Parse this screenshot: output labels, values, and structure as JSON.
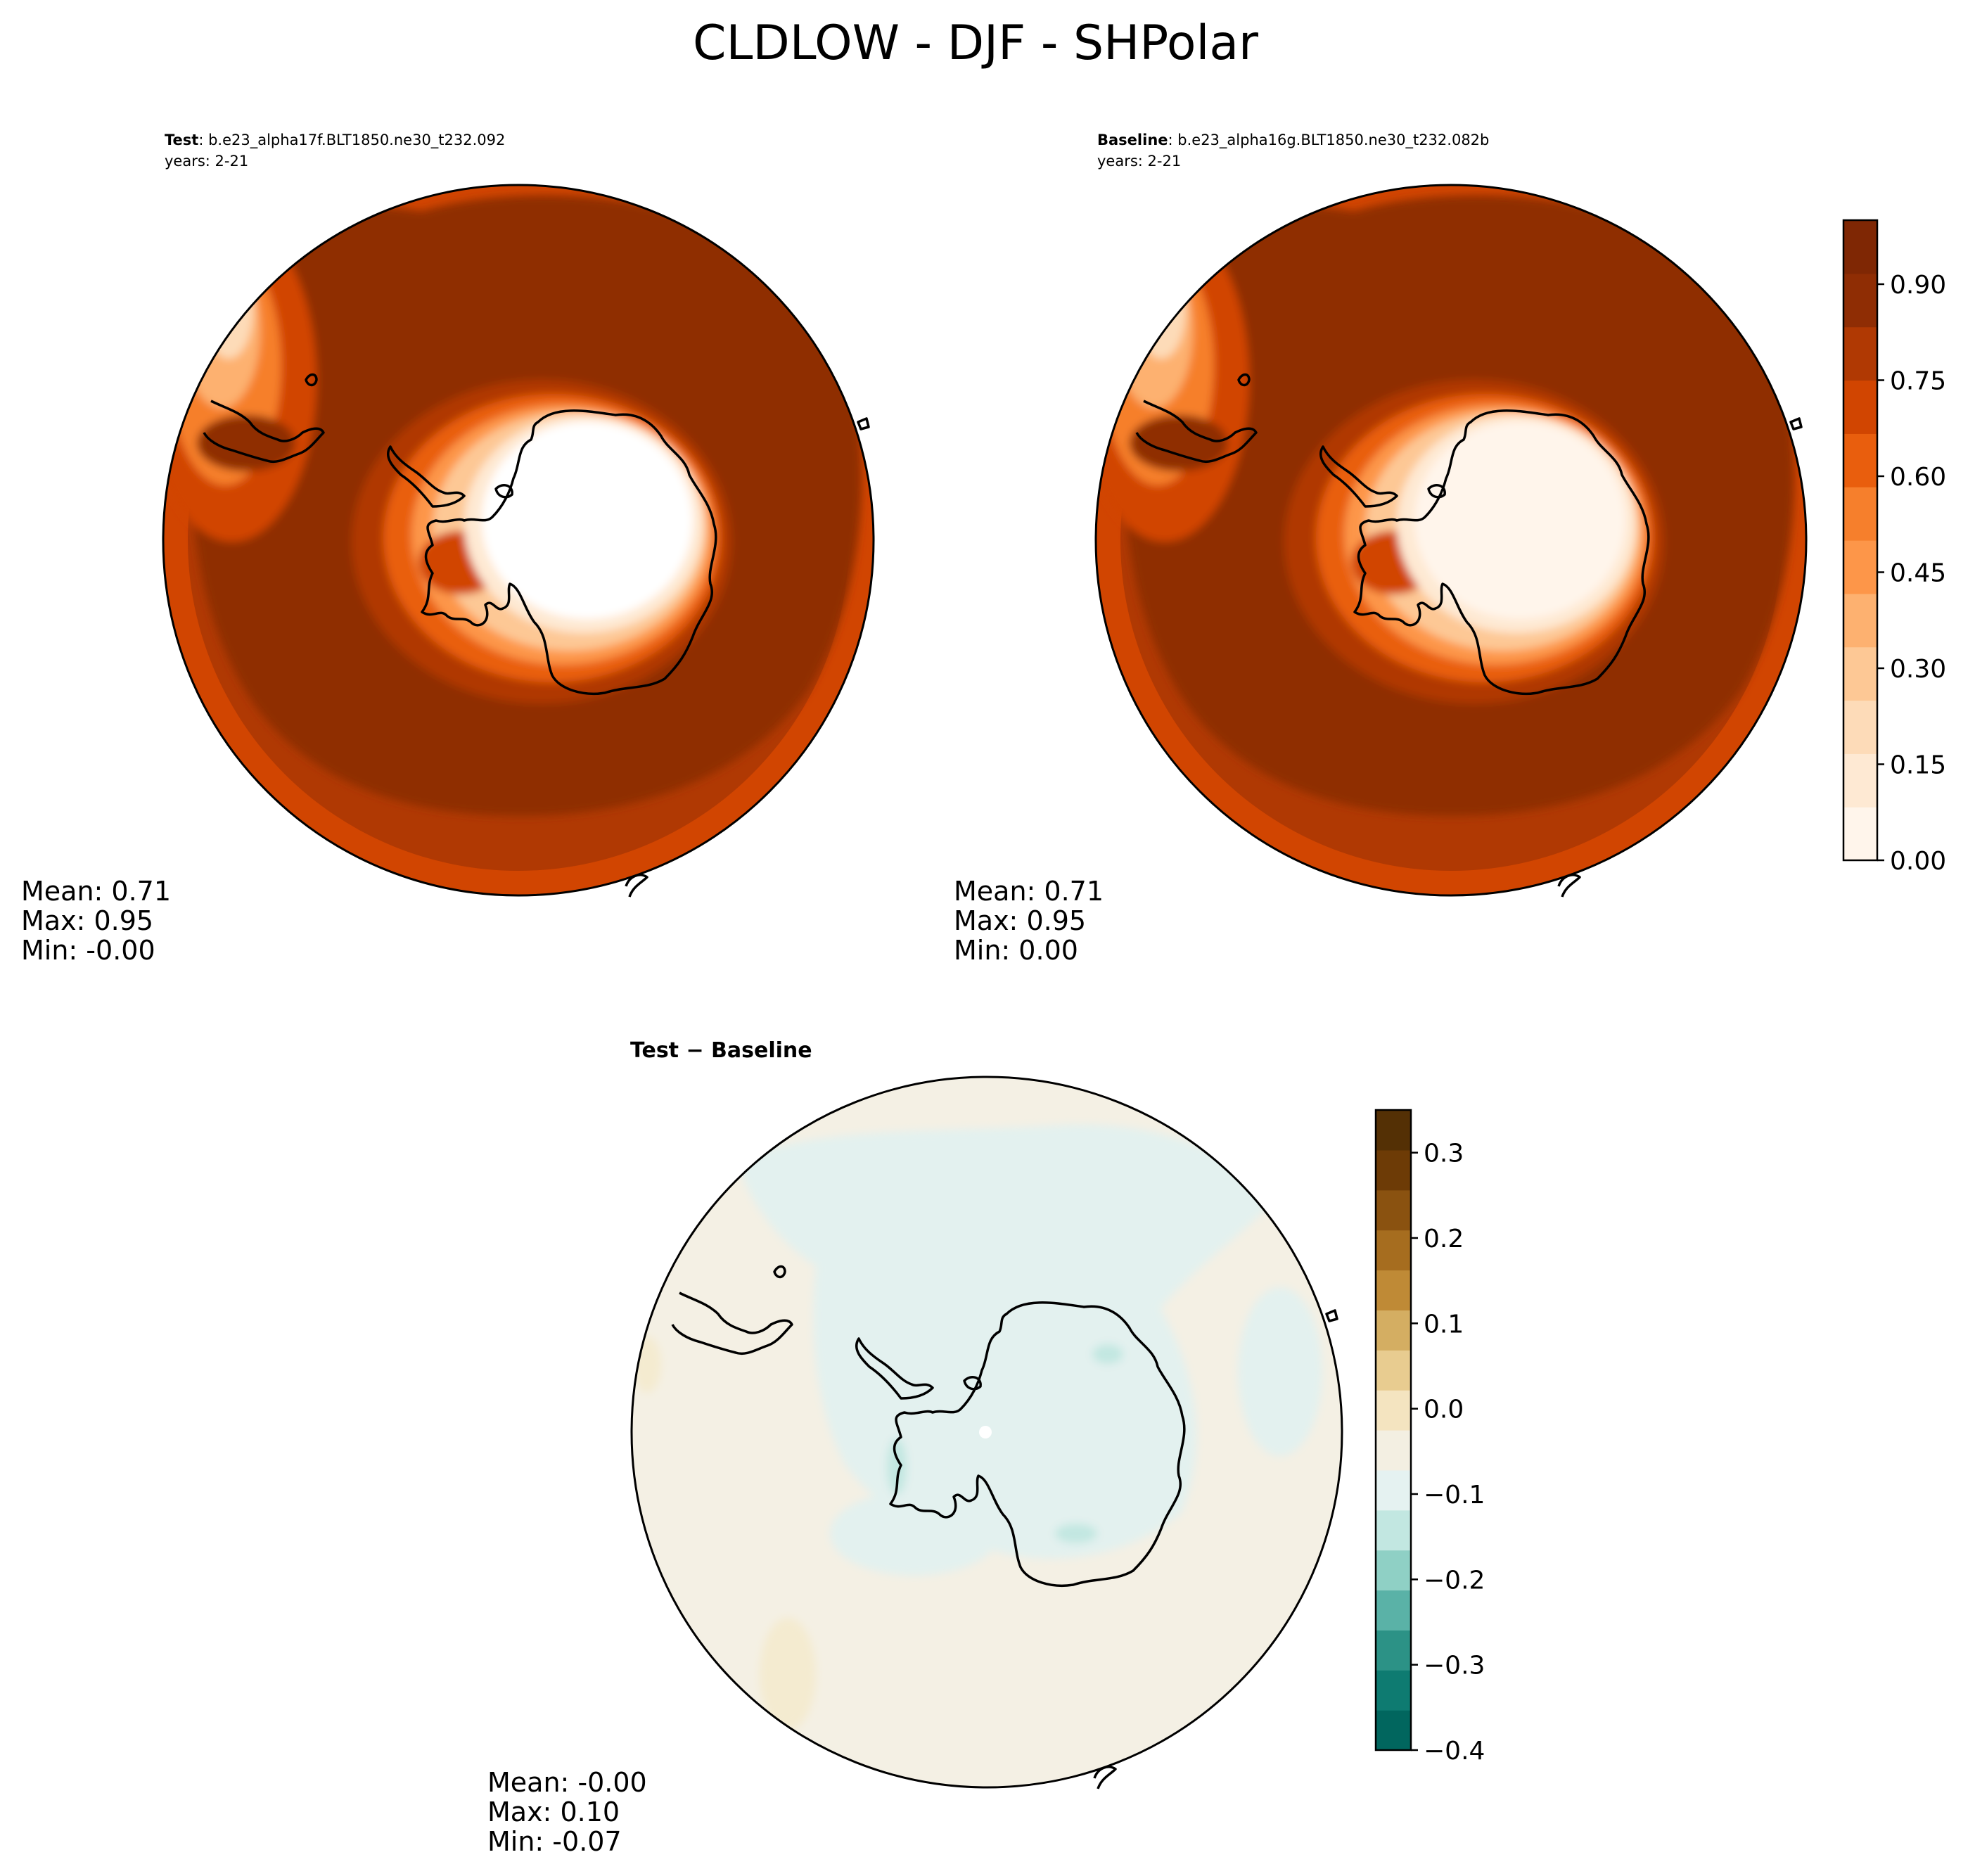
{
  "title": "CLDLOW - DJF - SHPolar",
  "panels": {
    "test": {
      "label": "Test",
      "case": ": b.e23_alpha17f.BLT1850.ne30_t232.092",
      "years": "years: 2-21",
      "stats": {
        "mean": "Mean:  0.71",
        "max": "Max:  0.95",
        "min": "Min: -0.00"
      }
    },
    "baseline": {
      "label": "Baseline",
      "case": ": b.e23_alpha16g.BLT1850.ne30_t232.082b",
      "years": "years: 2-21",
      "stats": {
        "mean": "Mean:  0.71",
        "max": "Max:  0.95",
        "min": "Min:  0.00"
      }
    },
    "diff": {
      "title": "Test − Baseline",
      "stats": {
        "mean": "Mean: -0.00",
        "max": "Max:  0.10",
        "min": "Min: -0.07"
      }
    }
  },
  "colorbars": {
    "main": {
      "ticks": [
        "0.00",
        "0.15",
        "0.30",
        "0.45",
        "0.60",
        "0.75",
        "0.90"
      ],
      "tick_values": [
        0,
        0.15,
        0.3,
        0.45,
        0.6,
        0.75,
        0.9
      ],
      "range": [
        0,
        1
      ],
      "colors": [
        "#fff5eb",
        "#fee9d3",
        "#fddbb8",
        "#fdc895",
        "#fdb170",
        "#fd9649",
        "#f67f2c",
        "#e95e0d",
        "#d14501",
        "#b03903",
        "#8f2d04",
        "#7f2704"
      ]
    },
    "diff": {
      "ticks": [
        "0.3",
        "0.2",
        "0.1",
        "0.0",
        "−0.1",
        "−0.2",
        "−0.3",
        "−0.4"
      ],
      "tick_values": [
        0.3,
        0.2,
        0.1,
        0.0,
        -0.1,
        -0.2,
        -0.3,
        -0.4
      ],
      "range": [
        -0.4,
        0.35
      ],
      "colors": [
        "#01665e",
        "#0e7b71",
        "#2c9286",
        "#5ab2a7",
        "#8fd0c5",
        "#c2e7e1",
        "#e5f2f1",
        "#f3efe2",
        "#f4e4c0",
        "#e8cc90",
        "#d4ae62",
        "#bf8a36",
        "#a66d1f",
        "#8a5210",
        "#6d3b06",
        "#543005"
      ]
    }
  }
}
